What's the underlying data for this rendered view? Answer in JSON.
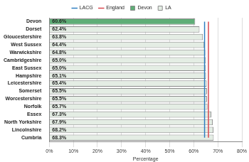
{
  "chart_data": {
    "type": "bar",
    "orientation": "horizontal",
    "categories": [
      "Devon",
      "Dorset",
      "Gloucestershire",
      "West Sussex",
      "Warwickshire",
      "Cambridgeshire",
      "East Sussex",
      "Hampshire",
      "Leicestershire",
      "Somerset",
      "Worcestershire",
      "Norfolk",
      "Essex",
      "North Yorkshire",
      "Lincolnshire",
      "Cumbria"
    ],
    "series": [
      {
        "name": "Devon",
        "color": "#5fae77",
        "values": [
          60.6,
          null,
          null,
          null,
          null,
          null,
          null,
          null,
          null,
          null,
          null,
          null,
          null,
          null,
          null,
          null
        ],
        "value_labels": [
          "60.6%",
          null,
          null,
          null,
          null,
          null,
          null,
          null,
          null,
          null,
          null,
          null,
          null,
          null,
          null,
          null
        ]
      },
      {
        "name": "LA",
        "color": "#e4ede4",
        "values": [
          null,
          62.4,
          63.8,
          64.4,
          64.8,
          65.0,
          65.0,
          65.1,
          65.4,
          65.5,
          65.5,
          65.7,
          67.3,
          67.9,
          68.2,
          68.3
        ],
        "value_labels": [
          null,
          "62.4%",
          "63.8%",
          "64.4%",
          "64.8%",
          "65.0%",
          "65.0%",
          "65.1%",
          "65.4%",
          "65.5%",
          "65.5%",
          "65.7%",
          "67.3%",
          "67.9%",
          "68.2%",
          "68.3%"
        ]
      },
      {
        "name": "LACG",
        "type": "line",
        "color": "#2f7fc1",
        "values": [
          64.5,
          64.5,
          64.5,
          64.5,
          64.5,
          64.5,
          64.5,
          64.5,
          64.5,
          64.5,
          64.5,
          64.5,
          64.5,
          64.5,
          64.5,
          64.5
        ]
      },
      {
        "name": "England",
        "type": "line",
        "color": "#d9474f",
        "values": [
          66.1,
          66.1,
          66.1,
          66.1,
          66.1,
          66.1,
          66.1,
          66.1,
          66.1,
          66.1,
          66.1,
          66.1,
          66.1,
          66.1,
          66.1,
          66.1
        ]
      }
    ],
    "x_label": "Percentage",
    "xlim": [
      0,
      80
    ],
    "xticks": [
      {
        "value": 0,
        "label": "0%"
      },
      {
        "value": 10,
        "label": "10%"
      },
      {
        "value": 20,
        "label": "20%"
      },
      {
        "value": 30,
        "label": "30%"
      },
      {
        "value": 40,
        "label": "40%"
      },
      {
        "value": 50,
        "label": "50%"
      },
      {
        "value": 60,
        "label": "60%"
      },
      {
        "value": 70,
        "label": "70%"
      },
      {
        "value": 80,
        "label": "80%"
      }
    ],
    "grid": true,
    "legend": "top",
    "data_labels": true
  }
}
